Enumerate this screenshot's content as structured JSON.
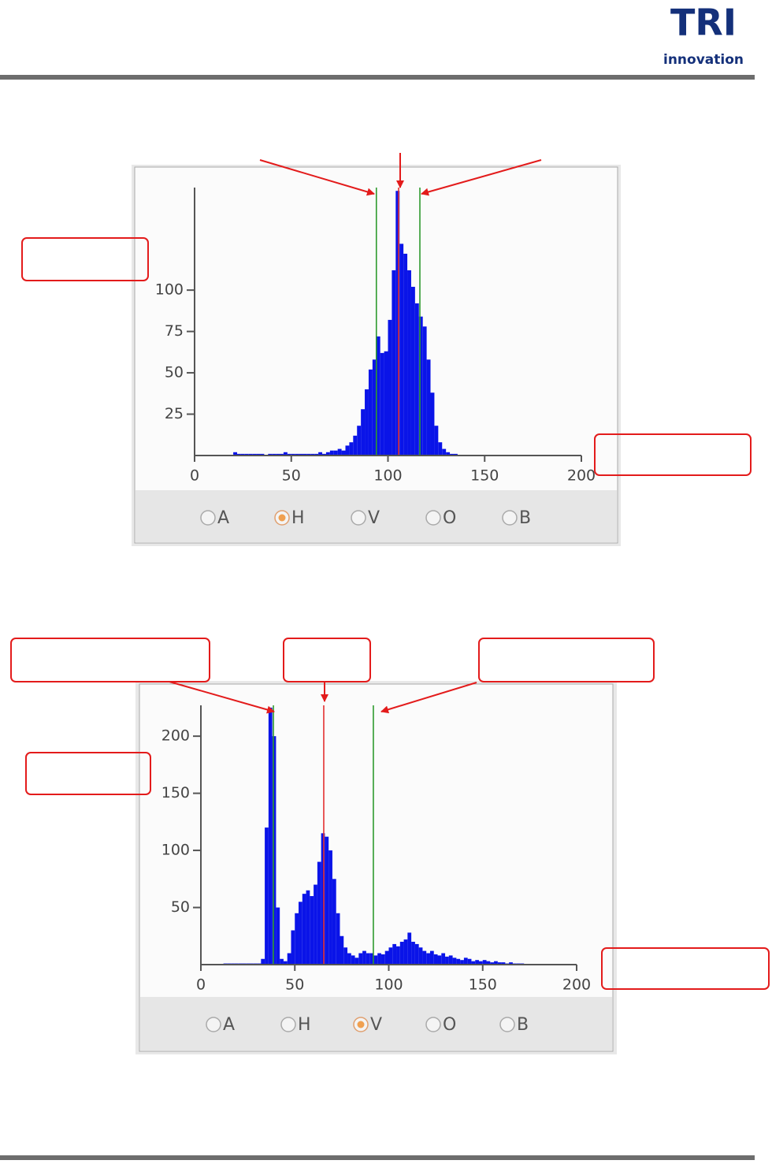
{
  "header": {
    "logo": "TRI",
    "logo_sub": "innovation"
  },
  "chart_data": [
    {
      "type": "histogram",
      "color": "#0a14e8",
      "bins": [
        18,
        20,
        22,
        24,
        26,
        28,
        30,
        32,
        34,
        36,
        38,
        40,
        42,
        44,
        46,
        48,
        50,
        52,
        54,
        56,
        58,
        60,
        62,
        64,
        66,
        68,
        70,
        72,
        74,
        76,
        78,
        80,
        82,
        84,
        86,
        88,
        90,
        92,
        94,
        96,
        98,
        100,
        102,
        104,
        106,
        108,
        110,
        112,
        114,
        116,
        118,
        120,
        122,
        124,
        126,
        128,
        130,
        132,
        134,
        136,
        138
      ],
      "counts": [
        0,
        2,
        1,
        1,
        1,
        1,
        1,
        1,
        1,
        0,
        1,
        1,
        1,
        1,
        2,
        1,
        1,
        1,
        1,
        1,
        1,
        1,
        1,
        2,
        1,
        2,
        3,
        3,
        4,
        3,
        6,
        8,
        12,
        18,
        28,
        40,
        52,
        58,
        72,
        62,
        63,
        82,
        112,
        160,
        128,
        122,
        112,
        102,
        92,
        84,
        78,
        58,
        38,
        18,
        8,
        4,
        2,
        1,
        1,
        0
      ],
      "xlim": [
        0,
        200
      ],
      "xticks": [
        0,
        50,
        100,
        150,
        200
      ],
      "ylim": [
        0,
        162
      ],
      "yticks": [
        25,
        50,
        75,
        100
      ],
      "markers": [
        {
          "x": 94,
          "color": "#2e9a2e"
        },
        {
          "x": 105.5,
          "color": "#e33030"
        },
        {
          "x": 116.5,
          "color": "#2e9a2e"
        }
      ],
      "options": [
        "A",
        "H",
        "V",
        "O",
        "B"
      ],
      "selected": "H"
    },
    {
      "type": "histogram",
      "color": "#0a14e8",
      "bins": [
        10,
        12,
        14,
        16,
        18,
        20,
        22,
        24,
        26,
        28,
        30,
        32,
        34,
        36,
        38,
        40,
        42,
        44,
        46,
        48,
        50,
        52,
        54,
        56,
        58,
        60,
        62,
        64,
        66,
        68,
        70,
        72,
        74,
        76,
        78,
        80,
        82,
        84,
        86,
        88,
        90,
        92,
        94,
        96,
        98,
        100,
        102,
        104,
        106,
        108,
        110,
        112,
        114,
        116,
        118,
        120,
        122,
        124,
        126,
        128,
        130,
        132,
        134,
        136,
        138,
        140,
        142,
        144,
        146,
        148,
        150,
        152,
        154,
        156,
        158,
        160,
        162,
        164,
        166,
        168,
        170,
        172
      ],
      "counts": [
        0,
        1,
        1,
        1,
        1,
        1,
        1,
        1,
        1,
        1,
        1,
        5,
        120,
        225,
        200,
        50,
        5,
        3,
        10,
        30,
        45,
        55,
        62,
        65,
        60,
        70,
        90,
        115,
        112,
        100,
        75,
        45,
        25,
        15,
        10,
        8,
        6,
        10,
        12,
        10,
        10,
        8,
        10,
        9,
        12,
        15,
        18,
        16,
        20,
        22,
        28,
        20,
        18,
        15,
        12,
        10,
        12,
        9,
        8,
        10,
        7,
        8,
        6,
        5,
        4,
        6,
        5,
        3,
        4,
        3,
        4,
        3,
        2,
        3,
        2,
        2,
        1,
        2,
        1,
        1,
        1
      ],
      "xlim": [
        0,
        200
      ],
      "xticks": [
        0,
        50,
        100,
        150,
        200
      ],
      "ylim": [
        0,
        227
      ],
      "yticks": [
        50,
        100,
        150,
        200
      ],
      "markers": [
        {
          "x": 38.6,
          "color": "#2e9a2e"
        },
        {
          "x": 65.4,
          "color": "#e33030"
        },
        {
          "x": 91.8,
          "color": "#2e9a2e"
        }
      ],
      "options": [
        "A",
        "H",
        "V",
        "O",
        "B"
      ],
      "selected": "V"
    }
  ]
}
